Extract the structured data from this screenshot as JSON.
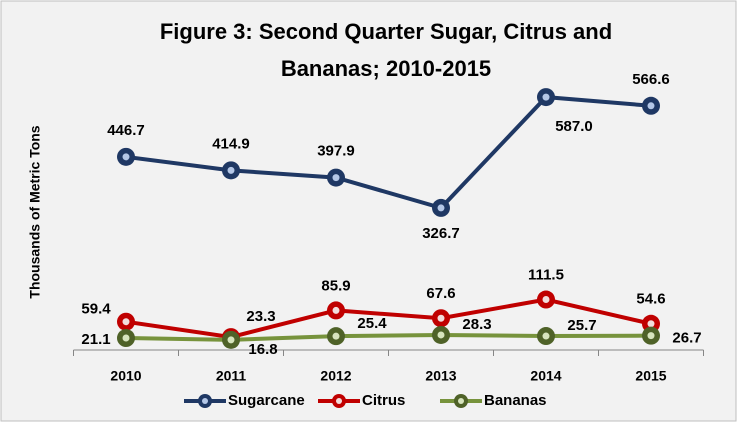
{
  "chart_data": {
    "type": "line",
    "title": "Figure 3: Second Quarter Sugar, Citrus and Bananas; 2010-2015",
    "y_label": "Thousands of Metric Tons",
    "categories": [
      "2010",
      "2011",
      "2012",
      "2013",
      "2014",
      "2015"
    ],
    "ylim": [
      0,
      700
    ],
    "series": [
      {
        "name": "Sugarcane",
        "color": "#1f3864",
        "values": [
          446.7,
          414.9,
          397.9,
          326.7,
          587.0,
          566.6
        ],
        "value_labels": [
          "446.7",
          "414.9",
          "397.9",
          "326.7",
          "587.0",
          "566.6"
        ]
      },
      {
        "name": "Citrus",
        "color": "#c00000",
        "values": [
          59.4,
          23.3,
          85.9,
          67.6,
          111.5,
          54.6
        ],
        "value_labels": [
          "59.4",
          "23.3",
          "85.9",
          "67.6",
          "111.5",
          "54.6"
        ]
      },
      {
        "name": "Bananas",
        "color": "#77933c",
        "values": [
          21.1,
          16.8,
          25.4,
          28.3,
          25.7,
          26.7
        ],
        "value_labels": [
          "21.1",
          "16.8",
          "25.4",
          "28.3",
          "25.7",
          "26.7"
        ]
      }
    ]
  }
}
